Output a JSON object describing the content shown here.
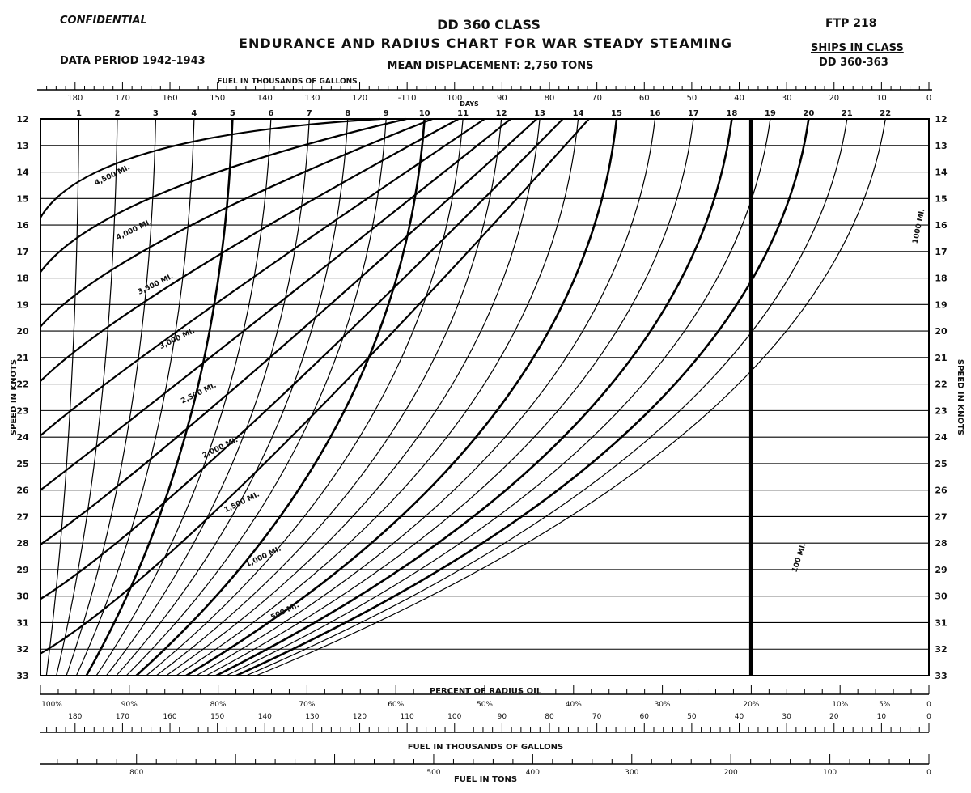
{
  "header": {
    "confidential": "CONFIDENTIAL",
    "class_title": "DD 360 CLASS",
    "main_title": "ENDURANCE AND RADIUS CHART FOR WAR STEADY STEAMING",
    "data_period": "DATA PERIOD 1942-1943",
    "displacement": "MEAN DISPLACEMENT: 2,750 TONS",
    "ftp": "FTP 218",
    "ships_label": "SHIPS IN CLASS",
    "ships_value": "DD 360-363"
  },
  "chart_data": {
    "type": "line",
    "title": "ENDURANCE AND RADIUS CHART FOR WAR STEADY STEAMING",
    "ylabel": "SPEED IN KNOTS",
    "ylabel_right": "SPEED IN KNOTS",
    "ylim": [
      12,
      33
    ],
    "y_ticks": [
      12,
      13,
      14,
      15,
      16,
      17,
      18,
      19,
      20,
      21,
      22,
      23,
      24,
      25,
      26,
      27,
      28,
      29,
      30,
      31,
      32,
      33
    ],
    "xlabel_top": "FUEL IN THOUSANDS OF GALLONS",
    "top_fuel_ticks": [
      180,
      170,
      160,
      150,
      140,
      130,
      120,
      110,
      100,
      90,
      80,
      70,
      60,
      50,
      40,
      30,
      20,
      10,
      0
    ],
    "top_fuel_labels": [
      "180",
      "170",
      "160",
      "150",
      "140",
      "130",
      "120",
      "-110",
      "100",
      "90",
      "80",
      "70",
      "60",
      "50",
      "40",
      "30",
      "20",
      "10",
      "0"
    ],
    "days_label": "DAYS",
    "days_ticks": [
      1,
      2,
      3,
      4,
      5,
      6,
      7,
      8,
      9,
      10,
      11,
      12,
      13,
      14,
      15,
      16,
      17,
      18,
      19,
      20,
      21,
      22
    ],
    "days_at_max_speed": [
      1.0,
      2.0,
      3.0,
      4.0,
      5.0,
      6.0,
      7.0,
      8.0,
      9.0,
      10.0,
      11.0,
      12.0,
      13.0,
      14.0,
      15.0,
      16.0,
      17.0,
      18.0,
      19.0,
      20.0,
      21.0,
      22.0
    ],
    "days_at_min_speed": [
      0.26,
      0.52,
      0.78,
      1.04,
      1.3,
      1.56,
      1.82,
      2.08,
      2.34,
      2.6,
      2.86,
      3.12,
      3.38,
      3.64,
      3.9,
      4.16,
      4.42,
      4.68,
      4.94,
      5.2,
      5.46,
      5.72
    ],
    "percent_axis_label": "PERCENT OF RADIUS OIL",
    "percent_ticks": [
      100,
      90,
      80,
      70,
      60,
      50,
      40,
      30,
      20,
      10,
      5,
      0
    ],
    "percent_labels": [
      "100%",
      "90%",
      "80%",
      "70%",
      "60%",
      "50%",
      "40%",
      "30%",
      "20%",
      "10%",
      "5%",
      "0"
    ],
    "xlabel_bottom": "FUEL IN THOUSANDS OF GALLONS",
    "bottom_fuel_ticks": [
      180,
      170,
      160,
      150,
      140,
      130,
      120,
      110,
      100,
      90,
      80,
      70,
      60,
      50,
      40,
      30,
      20,
      10,
      0
    ],
    "bottom_fuel_labels": [
      "180",
      "170",
      "160",
      "150",
      "140",
      "130",
      "120",
      "110",
      "100",
      "90",
      "80",
      "70",
      "60",
      "50",
      "40",
      "30",
      "20",
      "10",
      "0"
    ],
    "xlabel_tons": "FUEL IN TONS",
    "tons_ticks": [
      800,
      700,
      600,
      500,
      400,
      300,
      200,
      100,
      0
    ],
    "tons_labels": [
      "800",
      "",
      "",
      "500",
      "400",
      "300",
      "200",
      "100",
      "0"
    ],
    "radius_curves": [
      {
        "name": "500 MI.",
        "miles": 500
      },
      {
        "name": "1,000 MI.",
        "miles": 1000
      },
      {
        "name": "1,500 MI.",
        "miles": 1500
      },
      {
        "name": "2,000 MI.",
        "miles": 2000
      },
      {
        "name": "2,500 MI.",
        "miles": 2500
      },
      {
        "name": "3,000 MI.",
        "miles": 3000
      },
      {
        "name": "3,500 MI.",
        "miles": 3500
      },
      {
        "name": "4,000 MI.",
        "miles": 4000
      },
      {
        "name": "4,500 MI.",
        "miles": 4500
      }
    ],
    "curve_labels_right": [
      "100 MI.",
      "1000 MI."
    ],
    "reserve_line_percent": 20
  }
}
